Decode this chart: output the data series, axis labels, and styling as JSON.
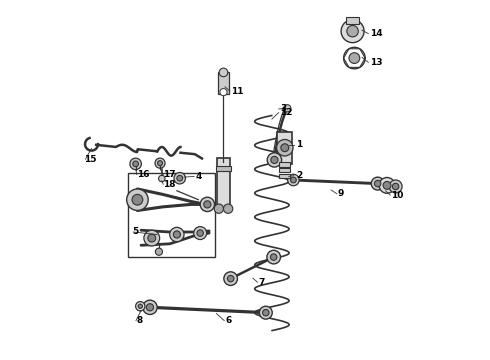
{
  "background_color": "#ffffff",
  "line_color": "#333333",
  "label_color": "#000000",
  "fig_width": 4.9,
  "fig_height": 3.6,
  "dpi": 100
}
